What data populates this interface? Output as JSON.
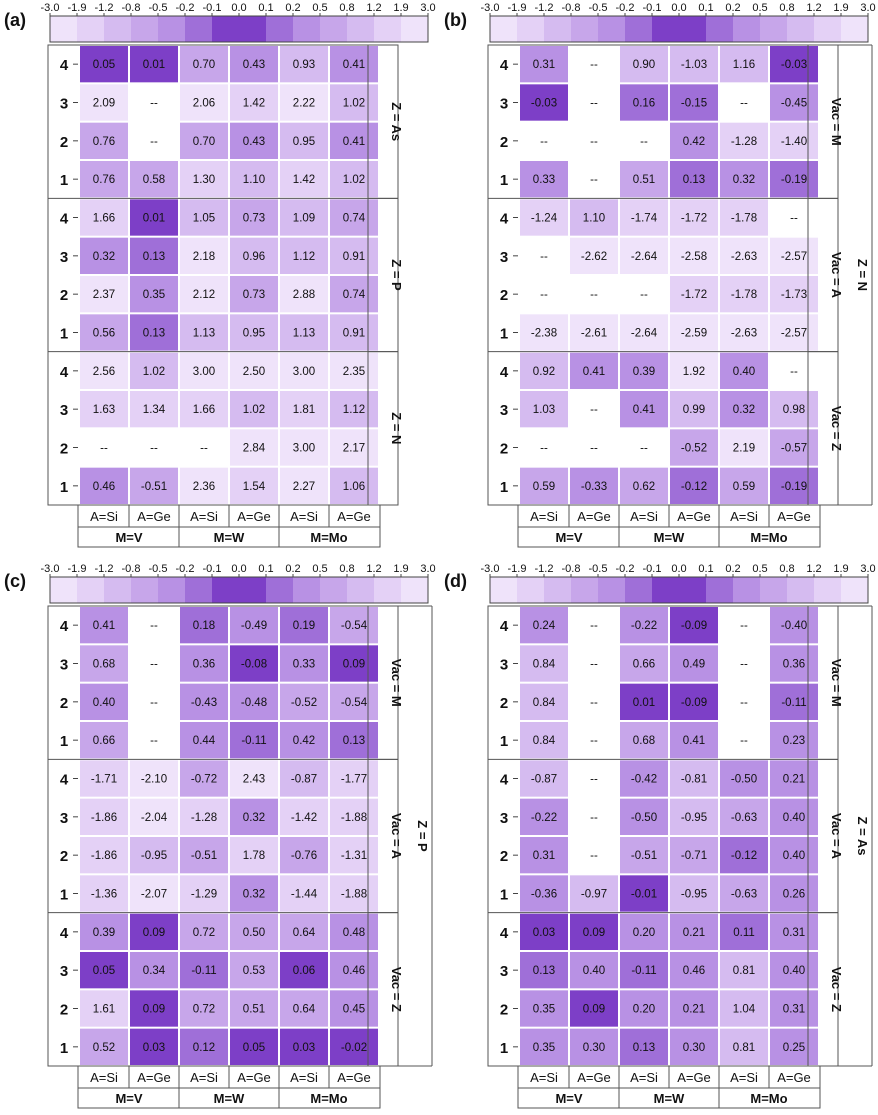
{
  "colorbar": {
    "ticks": [
      "-3.0",
      "-1.9",
      "-1.2",
      "-0.8",
      "-0.5",
      "-0.2",
      "-0.1",
      "0.0",
      "0.1",
      "0.2",
      "0.5",
      "0.8",
      "1.2",
      "1.9",
      "3.0"
    ],
    "colors": [
      "#efe3fa",
      "#e4d1f6",
      "#d5bbf0",
      "#c7a6ea",
      "#b891e4",
      "#9f6fd8",
      "#7d3fc7",
      "#7d3fc7",
      "#9f6fd8",
      "#b891e4",
      "#c7a6ea",
      "#d5bbf0",
      "#e4d1f6",
      "#efe3fa"
    ]
  },
  "x_axis": {
    "a_labels": [
      "A=Si",
      "A=Ge",
      "A=Si",
      "A=Ge",
      "A=Si",
      "A=Ge"
    ],
    "m_labels": [
      "M=V",
      "M=W",
      "M=Mo"
    ]
  },
  "row_labels": [
    "4",
    "3",
    "2",
    "1"
  ],
  "empty_marker": "--",
  "chart_data": [
    {
      "type": "heatmap",
      "panel_label": "(a)",
      "outer_label": "",
      "groups": [
        {
          "label": "Z = As",
          "rows": [
            [
              "0.05",
              "0.01",
              "0.70",
              "0.43",
              "0.93",
              "0.41"
            ],
            [
              "2.09",
              "--",
              "2.06",
              "1.42",
              "2.22",
              "1.02"
            ],
            [
              "0.76",
              "--",
              "0.70",
              "0.43",
              "0.95",
              "0.41"
            ],
            [
              "0.76",
              "0.58",
              "1.30",
              "1.10",
              "1.42",
              "1.02"
            ]
          ]
        },
        {
          "label": "Z = P",
          "rows": [
            [
              "1.66",
              "0.01",
              "1.05",
              "0.73",
              "1.09",
              "0.74"
            ],
            [
              "0.32",
              "0.13",
              "2.18",
              "0.96",
              "1.12",
              "0.91"
            ],
            [
              "2.37",
              "0.35",
              "2.12",
              "0.73",
              "2.88",
              "0.74"
            ],
            [
              "0.56",
              "0.13",
              "1.13",
              "0.95",
              "1.13",
              "0.91"
            ]
          ]
        },
        {
          "label": "Z = N",
          "rows": [
            [
              "2.56",
              "1.02",
              "3.00",
              "2.50",
              "3.00",
              "2.35"
            ],
            [
              "1.63",
              "1.34",
              "1.66",
              "1.02",
              "1.81",
              "1.12"
            ],
            [
              "--",
              "--",
              "--",
              "2.84",
              "3.00",
              "2.17"
            ],
            [
              "0.46",
              "-0.51",
              "2.36",
              "1.54",
              "2.27",
              "1.06"
            ]
          ]
        }
      ]
    },
    {
      "type": "heatmap",
      "panel_label": "(b)",
      "outer_label": "Z = N",
      "groups": [
        {
          "label": "Vac = M",
          "rows": [
            [
              "0.31",
              "--",
              "0.90",
              "-1.03",
              "1.16",
              "-0.03"
            ],
            [
              "-0.03",
              "--",
              "0.16",
              "-0.15",
              "--",
              "-0.45"
            ],
            [
              "--",
              "--",
              "--",
              "0.42",
              "-1.28",
              "-1.40"
            ],
            [
              "0.33",
              "--",
              "0.51",
              "0.13",
              "0.32",
              "-0.19"
            ]
          ]
        },
        {
          "label": "Vac = A",
          "rows": [
            [
              "-1.24",
              "1.10",
              "-1.74",
              "-1.72",
              "-1.78",
              "--"
            ],
            [
              "--",
              "-2.62",
              "-2.64",
              "-2.58",
              "-2.63",
              "-2.57"
            ],
            [
              "--",
              "--",
              "--",
              "-1.72",
              "-1.78",
              "-1.73"
            ],
            [
              "-2.38",
              "-2.61",
              "-2.64",
              "-2.59",
              "-2.63",
              "-2.57"
            ]
          ]
        },
        {
          "label": "Vac = Z",
          "rows": [
            [
              "0.92",
              "0.41",
              "0.39",
              "1.92",
              "0.40",
              "--"
            ],
            [
              "1.03",
              "--",
              "0.41",
              "0.99",
              "0.32",
              "0.98"
            ],
            [
              "--",
              "--",
              "--",
              "-0.52",
              "2.19",
              "-0.57"
            ],
            [
              "0.59",
              "-0.33",
              "0.62",
              "-0.12",
              "0.59",
              "-0.19"
            ]
          ]
        }
      ]
    },
    {
      "type": "heatmap",
      "panel_label": "(c)",
      "outer_label": "Z = P",
      "groups": [
        {
          "label": "Vac = M",
          "rows": [
            [
              "0.41",
              "--",
              "0.18",
              "-0.49",
              "0.19",
              "-0.54"
            ],
            [
              "0.68",
              "--",
              "0.36",
              "-0.08",
              "0.33",
              "0.09"
            ],
            [
              "0.40",
              "--",
              "-0.43",
              "-0.48",
              "-0.52",
              "-0.54"
            ],
            [
              "0.66",
              "--",
              "0.44",
              "-0.11",
              "0.42",
              "0.13"
            ]
          ]
        },
        {
          "label": "Vac = A",
          "rows": [
            [
              "-1.71",
              "-2.10",
              "-0.72",
              "2.43",
              "-0.87",
              "-1.77"
            ],
            [
              "-1.86",
              "-2.04",
              "-1.28",
              "0.32",
              "-1.42",
              "-1.88"
            ],
            [
              "-1.86",
              "-0.95",
              "-0.51",
              "1.78",
              "-0.76",
              "-1.31"
            ],
            [
              "-1.36",
              "-2.07",
              "-1.29",
              "0.32",
              "-1.44",
              "-1.88"
            ]
          ]
        },
        {
          "label": "Vac = Z",
          "rows": [
            [
              "0.39",
              "0.09",
              "0.72",
              "0.50",
              "0.64",
              "0.48"
            ],
            [
              "0.05",
              "0.34",
              "-0.11",
              "0.53",
              "0.06",
              "0.46"
            ],
            [
              "1.61",
              "0.09",
              "0.72",
              "0.51",
              "0.64",
              "0.45"
            ],
            [
              "0.52",
              "0.03",
              "0.12",
              "0.05",
              "0.03",
              "-0.02"
            ]
          ]
        }
      ]
    },
    {
      "type": "heatmap",
      "panel_label": "(d)",
      "outer_label": "Z = As",
      "groups": [
        {
          "label": "Vac = M",
          "rows": [
            [
              "0.24",
              "--",
              "-0.22",
              "-0.09",
              "--",
              "-0.40"
            ],
            [
              "0.84",
              "--",
              "0.66",
              "0.49",
              "--",
              "0.36"
            ],
            [
              "0.84",
              "--",
              "0.01",
              "-0.09",
              "--",
              "-0.11"
            ],
            [
              "0.84",
              "--",
              "0.68",
              "0.41",
              "--",
              "0.23"
            ]
          ]
        },
        {
          "label": "Vac = A",
          "rows": [
            [
              "-0.87",
              "--",
              "-0.42",
              "-0.81",
              "-0.50",
              "0.21"
            ],
            [
              "-0.22",
              "--",
              "-0.50",
              "-0.95",
              "-0.63",
              "0.40"
            ],
            [
              "0.31",
              "--",
              "-0.51",
              "-0.71",
              "-0.12",
              "0.40"
            ],
            [
              "-0.36",
              "-0.97",
              "-0.01",
              "-0.95",
              "-0.63",
              "0.26"
            ]
          ]
        },
        {
          "label": "Vac = Z",
          "rows": [
            [
              "0.03",
              "0.09",
              "0.20",
              "0.21",
              "0.11",
              "0.31"
            ],
            [
              "0.13",
              "0.40",
              "-0.11",
              "0.46",
              "0.81",
              "0.40"
            ],
            [
              "0.35",
              "0.09",
              "0.20",
              "0.21",
              "1.04",
              "0.31"
            ],
            [
              "0.35",
              "0.30",
              "0.13",
              "0.30",
              "0.81",
              "0.25"
            ]
          ]
        }
      ]
    }
  ]
}
